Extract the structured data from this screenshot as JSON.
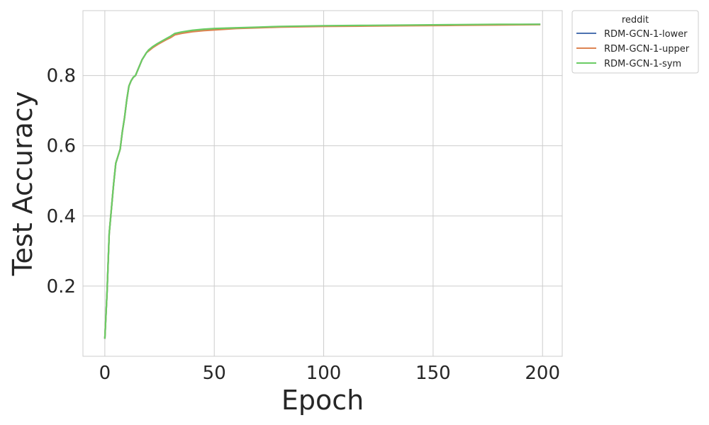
{
  "chart_data": {
    "type": "line",
    "title": "",
    "xlabel": "Epoch",
    "ylabel": "Test Accuracy",
    "xlim": [
      -10,
      209
    ],
    "ylim": [
      0.0,
      0.985
    ],
    "xticks": [
      0,
      50,
      100,
      150,
      200
    ],
    "yticks": [
      0.2,
      0.4,
      0.6,
      0.8
    ],
    "xtick_labels": [
      "0",
      "50",
      "100",
      "150",
      "200"
    ],
    "ytick_labels": [
      "0.2",
      "0.4",
      "0.6",
      "0.8"
    ],
    "grid": true,
    "legend": {
      "title": "reddit",
      "placement": "outside-upper-right"
    },
    "series": [
      {
        "name": "RDM-GCN-1-lower",
        "color": "#4c72b0",
        "x": [
          0,
          1,
          2,
          3,
          4,
          5,
          6,
          7,
          8,
          9,
          10,
          11,
          12,
          13,
          14,
          15,
          16,
          17,
          18,
          19,
          20,
          22,
          24,
          26,
          28,
          30,
          32,
          35,
          40,
          45,
          50,
          60,
          70,
          80,
          90,
          100,
          120,
          140,
          160,
          180,
          199
        ],
        "y": [
          0.05,
          0.18,
          0.35,
          0.42,
          0.49,
          0.55,
          0.57,
          0.59,
          0.64,
          0.68,
          0.73,
          0.77,
          0.785,
          0.795,
          0.8,
          0.815,
          0.83,
          0.845,
          0.855,
          0.865,
          0.872,
          0.882,
          0.89,
          0.897,
          0.904,
          0.91,
          0.918,
          0.922,
          0.927,
          0.93,
          0.932,
          0.935,
          0.937,
          0.939,
          0.94,
          0.941,
          0.942,
          0.943,
          0.944,
          0.945,
          0.946
        ]
      },
      {
        "name": "RDM-GCN-1-upper",
        "color": "#dd8452",
        "x": [
          0,
          1,
          2,
          3,
          4,
          5,
          6,
          7,
          8,
          9,
          10,
          11,
          12,
          13,
          14,
          15,
          16,
          17,
          18,
          19,
          20,
          22,
          24,
          26,
          28,
          30,
          32,
          35,
          40,
          45,
          50,
          60,
          70,
          80,
          90,
          100,
          120,
          140,
          160,
          180,
          199
        ],
        "y": [
          0.05,
          0.18,
          0.35,
          0.42,
          0.49,
          0.55,
          0.57,
          0.59,
          0.64,
          0.68,
          0.73,
          0.77,
          0.785,
          0.795,
          0.8,
          0.815,
          0.83,
          0.845,
          0.855,
          0.865,
          0.87,
          0.88,
          0.888,
          0.895,
          0.902,
          0.908,
          0.916,
          0.92,
          0.925,
          0.928,
          0.93,
          0.934,
          0.936,
          0.938,
          0.939,
          0.94,
          0.941,
          0.942,
          0.943,
          0.944,
          0.945
        ]
      },
      {
        "name": "RDM-GCN-1-sym",
        "color": "#6acc64",
        "x": [
          0,
          1,
          2,
          3,
          4,
          5,
          6,
          7,
          8,
          9,
          10,
          11,
          12,
          13,
          14,
          15,
          16,
          17,
          18,
          19,
          20,
          22,
          24,
          26,
          28,
          30,
          32,
          35,
          40,
          45,
          50,
          60,
          70,
          80,
          90,
          100,
          120,
          140,
          160,
          180,
          199
        ],
        "y": [
          0.05,
          0.18,
          0.35,
          0.42,
          0.49,
          0.55,
          0.57,
          0.59,
          0.64,
          0.68,
          0.73,
          0.77,
          0.785,
          0.795,
          0.8,
          0.815,
          0.83,
          0.845,
          0.855,
          0.865,
          0.873,
          0.883,
          0.891,
          0.898,
          0.905,
          0.912,
          0.92,
          0.924,
          0.929,
          0.932,
          0.934,
          0.936,
          0.938,
          0.94,
          0.941,
          0.942,
          0.943,
          0.944,
          0.945,
          0.946,
          0.946
        ]
      }
    ]
  }
}
